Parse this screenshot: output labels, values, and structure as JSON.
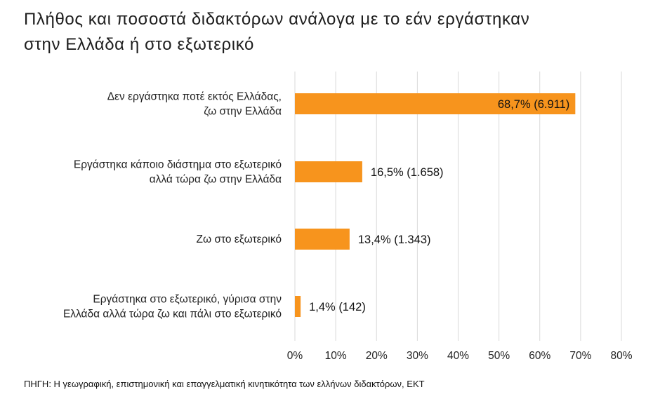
{
  "chart_data": {
    "type": "bar",
    "orientation": "horizontal",
    "title_lines": [
      "Πλήθος και ποσοστά διδακτόρων ανάλογα με το εάν εργάστηκαν",
      "στην Ελλάδα ή στο εξωτερικό"
    ],
    "categories": [
      [
        "Δεν εργάστηκα ποτέ εκτός Ελλάδας,",
        "ζω στην Ελλάδα"
      ],
      [
        "Εργάστηκα κάποιο διάστημα στο εξωτερικό",
        "αλλά τώρα ζω στην Ελλάδα"
      ],
      [
        "Ζω στο εξωτερικό"
      ],
      [
        "Εργάστηκα στο εξωτερικό, γύρισα στην",
        "Ελλάδα αλλά τώρα ζω και πάλι στο εξωτερικό"
      ]
    ],
    "values": [
      68.7,
      16.5,
      13.4,
      1.4
    ],
    "data_labels": [
      "68,7% (6.911)",
      "16,5% (1.658)",
      "13,4% (1.343)",
      "1,4% (142)"
    ],
    "x_ticks": [
      0,
      10,
      20,
      30,
      40,
      50,
      60,
      70,
      80
    ],
    "x_tick_labels": [
      "0%",
      "10%",
      "20%",
      "30%",
      "40%",
      "50%",
      "60%",
      "70%",
      "80%"
    ],
    "xlim": [
      0,
      80
    ],
    "grid": "vertical",
    "bar_color": "#f7941d",
    "grid_color": "#d9d9d9"
  },
  "source": "ΠΗΓΗ: Η γεωγραφική, επιστημονική και επαγγελματική κινητικότητα των ελλήνων διδακτόρων, ΕΚΤ"
}
